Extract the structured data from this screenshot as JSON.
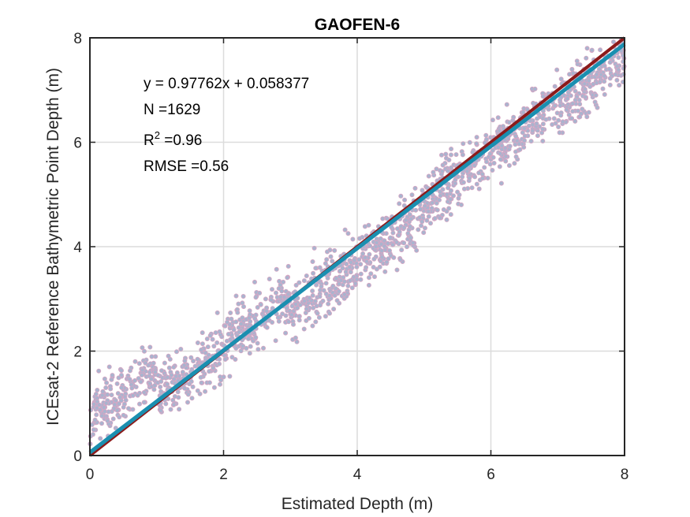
{
  "chart_data": {
    "type": "scatter",
    "title": "GAOFEN-6",
    "xlabel": "Estimated Depth (m)",
    "ylabel": "ICEsat-2 Reference Bathymetric Point Depth (m)",
    "xlim": [
      0,
      8
    ],
    "ylim": [
      0,
      8
    ],
    "xticks": [
      "0",
      "2",
      "4",
      "6",
      "8"
    ],
    "yticks": [
      "0",
      "2",
      "4",
      "6",
      "8"
    ],
    "grid": true,
    "annotations": {
      "equation": "y = 0.97762x + 0.058377",
      "n": "N =1629",
      "r2_base": "R",
      "r2_sup": "2",
      "r2_value": " =0.96",
      "rmse": "RMSE =0.56"
    },
    "series": [
      {
        "kind": "scatter",
        "count": 1629,
        "color": "#a9b4cf",
        "edge_color": "#d7a6c3",
        "clusters": [
          {
            "x_range": [
              0,
              1
            ],
            "y_center": 1.2,
            "y_spread": 0.5
          },
          {
            "x_range": [
              1,
              2
            ],
            "y_center": 1.6,
            "y_spread": 0.5
          },
          {
            "x_range": [
              2,
              3
            ],
            "y_center": 2.6,
            "y_spread": 0.55
          },
          {
            "x_range": [
              3,
              4
            ],
            "y_center": 3.2,
            "y_spread": 0.55
          },
          {
            "x_range": [
              4,
              5
            ],
            "y_center": 4.2,
            "y_spread": 0.5
          },
          {
            "x_range": [
              5,
              6
            ],
            "y_center": 5.3,
            "y_spread": 0.5
          },
          {
            "x_range": [
              6,
              7
            ],
            "y_center": 6.3,
            "y_spread": 0.5
          },
          {
            "x_range": [
              7,
              8
            ],
            "y_center": 7.2,
            "y_spread": 0.5
          }
        ]
      },
      {
        "kind": "line",
        "slope": 1,
        "intercept": 0,
        "color": "#8b1a1a"
      },
      {
        "kind": "line",
        "slope": 0.97762,
        "intercept": 0.058377,
        "color": "#1a8fb0"
      }
    ]
  }
}
